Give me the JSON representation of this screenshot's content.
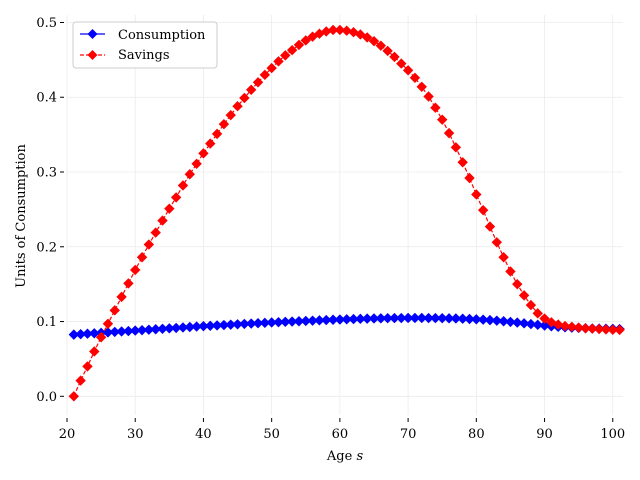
{
  "chart_data": {
    "type": "line",
    "xlabel": "Age",
    "xlabel_italic_symbol": "s",
    "ylabel": "Units of Consumption",
    "xlim": [
      20,
      101.5
    ],
    "ylim": [
      -0.025,
      0.51
    ],
    "xticks": [
      "20",
      "30",
      "40",
      "50",
      "60",
      "70",
      "80",
      "90",
      "100"
    ],
    "yticks": [
      "0.0",
      "0.1",
      "0.2",
      "0.3",
      "0.4",
      "0.5"
    ],
    "grid": true,
    "legend_position": "top-left",
    "x": [
      21,
      22,
      23,
      24,
      25,
      26,
      27,
      28,
      29,
      30,
      31,
      32,
      33,
      34,
      35,
      36,
      37,
      38,
      39,
      40,
      41,
      42,
      43,
      44,
      45,
      46,
      47,
      48,
      49,
      50,
      51,
      52,
      53,
      54,
      55,
      56,
      57,
      58,
      59,
      60,
      61,
      62,
      63,
      64,
      65,
      66,
      67,
      68,
      69,
      70,
      71,
      72,
      73,
      74,
      75,
      76,
      77,
      78,
      79,
      80,
      81,
      82,
      83,
      84,
      85,
      86,
      87,
      88,
      89,
      90,
      91,
      92,
      93,
      94,
      95,
      96,
      97,
      98,
      99,
      100,
      101
    ],
    "series": [
      {
        "name": "Consumption",
        "color": "#0000ff",
        "marker": "diamond",
        "linestyle": "solid",
        "values": [
          0.0825,
          0.0831,
          0.0837,
          0.0843,
          0.0849,
          0.0855,
          0.0861,
          0.0867,
          0.0873,
          0.0879,
          0.0885,
          0.0891,
          0.0897,
          0.0903,
          0.0909,
          0.0915,
          0.0921,
          0.0927,
          0.0933,
          0.0938,
          0.0943,
          0.0948,
          0.0953,
          0.0958,
          0.0963,
          0.0968,
          0.0973,
          0.0978,
          0.0983,
          0.0988,
          0.0992,
          0.0996,
          0.1,
          0.1004,
          0.1008,
          0.1012,
          0.1016,
          0.102,
          0.1024,
          0.1027,
          0.103,
          0.1033,
          0.1036,
          0.1039,
          0.1041,
          0.1043,
          0.1045,
          0.1046,
          0.1047,
          0.1048,
          0.1048,
          0.1048,
          0.1047,
          0.1046,
          0.1045,
          0.1043,
          0.1041,
          0.1038,
          0.1034,
          0.103,
          0.1025,
          0.1019,
          0.1012,
          0.1004,
          0.0995,
          0.0986,
          0.0976,
          0.0966,
          0.0956,
          0.0946,
          0.0937,
          0.0929,
          0.0923,
          0.0918,
          0.0914,
          0.0911,
          0.0908,
          0.0906,
          0.0904,
          0.0902,
          0.09
        ]
      },
      {
        "name": "Savings",
        "color": "#ff0000",
        "marker": "diamond",
        "linestyle": "dashed",
        "values": [
          0.0,
          0.021,
          0.04,
          0.06,
          0.079,
          0.097,
          0.115,
          0.133,
          0.151,
          0.169,
          0.186,
          0.203,
          0.219,
          0.235,
          0.251,
          0.266,
          0.282,
          0.297,
          0.311,
          0.325,
          0.338,
          0.351,
          0.364,
          0.376,
          0.388,
          0.399,
          0.41,
          0.42,
          0.43,
          0.439,
          0.448,
          0.456,
          0.463,
          0.47,
          0.476,
          0.481,
          0.485,
          0.488,
          0.49,
          0.49,
          0.489,
          0.487,
          0.484,
          0.48,
          0.475,
          0.469,
          0.462,
          0.454,
          0.445,
          0.436,
          0.426,
          0.414,
          0.401,
          0.386,
          0.37,
          0.352,
          0.333,
          0.313,
          0.292,
          0.27,
          0.249,
          0.227,
          0.206,
          0.186,
          0.167,
          0.15,
          0.135,
          0.122,
          0.111,
          0.104,
          0.099,
          0.096,
          0.094,
          0.093,
          0.092,
          0.091,
          0.0905,
          0.09,
          0.0895,
          0.089,
          0.0888
        ]
      }
    ]
  }
}
